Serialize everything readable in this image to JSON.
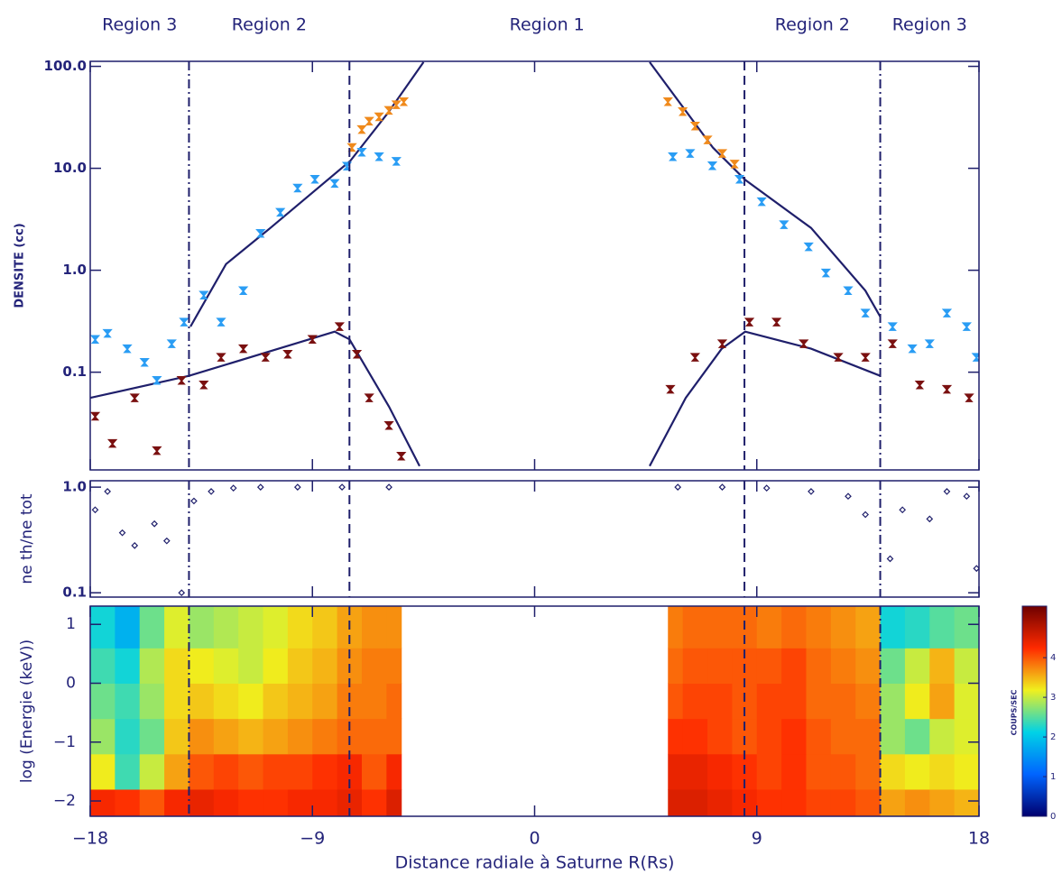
{
  "chart_data": [
    {
      "type": "scatter",
      "ylabel": "DENSITE (cc)",
      "ylog": true,
      "ylim": [
        0.011,
        112
      ],
      "yticks": [
        0.1,
        {
          "value": 1,
          "label": "1.0"
        },
        {
          "value": 10,
          "label": "10.0"
        },
        {
          "value": 100,
          "label": "100.0"
        }
      ],
      "regions": [
        "Region 3",
        "Region 2",
        "Region 1",
        "Region 2",
        "Region 3"
      ],
      "boundaries": [
        {
          "x": -14,
          "style": "dashdot"
        },
        {
          "x": -7.5,
          "style": "dashed"
        },
        {
          "x": 8.5,
          "style": "dashed"
        },
        {
          "x": 14,
          "style": "dashdot"
        }
      ],
      "series": [
        {
          "color": "#1f1f6b",
          "mark": "line",
          "x": [
            -13.94,
            -12.5,
            -10.7,
            -7.47,
            -5.94,
            -4.5,
            null,
            -18,
            -14,
            -8.1,
            -7.5,
            -5.9,
            -4.66,
            null,
            4.66,
            7.22,
            8.53,
            11.2,
            13.4,
            14,
            null,
            4.66,
            6.12,
            7.58,
            8.53,
            11.2,
            14
          ],
          "values": [
            0.28,
            1.15,
            2.6,
            11.8,
            35,
            110,
            null,
            0.056,
            0.092,
            0.25,
            0.21,
            0.046,
            0.012,
            null,
            110,
            16,
            7.7,
            2.6,
            0.63,
            0.35,
            null,
            0.012,
            0.056,
            0.17,
            0.25,
            0.17,
            0.092
          ]
        },
        {
          "color": "#2a9df4",
          "mark": "point",
          "x": [
            -17.8,
            -17.3,
            -16.5,
            -15.8,
            -15.3,
            -14.7,
            -14.2,
            -13.4,
            -12.7,
            -11.8,
            -11.1,
            -10.3,
            -9.6,
            -8.9,
            -8.1,
            -7.6,
            -7.0,
            -6.3,
            -5.6,
            5.6,
            6.3,
            7.2,
            8.3,
            9.2,
            10.1,
            11.1,
            11.8,
            12.7,
            13.4,
            14.5,
            15.3,
            16.0,
            16.7,
            17.5,
            17.9
          ],
          "values": [
            0.21,
            0.24,
            0.17,
            0.125,
            0.083,
            0.19,
            0.31,
            0.57,
            0.31,
            0.63,
            2.3,
            3.7,
            6.4,
            7.8,
            7.1,
            10.5,
            14.4,
            13,
            11.7,
            13,
            14,
            10.6,
            7.8,
            4.7,
            2.8,
            1.7,
            0.94,
            0.63,
            0.38,
            0.28,
            0.17,
            0.19,
            0.38,
            0.28,
            0.14
          ]
        },
        {
          "color": "#f08a1c",
          "mark": "point",
          "x": [
            -7.4,
            -7.0,
            -6.7,
            -6.3,
            -5.9,
            -5.6,
            -5.3,
            5.4,
            6.0,
            6.5,
            7.0,
            7.6,
            8.1
          ],
          "values": [
            16,
            24,
            29,
            32,
            37,
            42,
            45,
            45,
            36,
            26,
            19,
            14,
            11
          ]
        },
        {
          "color": "#7a1010",
          "mark": "point",
          "x": [
            -17.8,
            -17.1,
            -16.2,
            -15.3,
            -14.3,
            -13.4,
            -12.7,
            -11.8,
            -10.9,
            -10.0,
            -9.0,
            -7.9,
            -7.2,
            -6.7,
            -5.9,
            -5.4,
            5.5,
            6.5,
            7.6,
            8.7,
            9.8,
            10.9,
            12.3,
            13.4,
            14.5,
            15.6,
            16.7,
            17.6
          ],
          "values": [
            0.037,
            0.02,
            0.056,
            0.017,
            0.083,
            0.075,
            0.14,
            0.17,
            0.14,
            0.15,
            0.21,
            0.28,
            0.15,
            0.056,
            0.03,
            0.015,
            0.068,
            0.14,
            0.19,
            0.31,
            0.31,
            0.19,
            0.14,
            0.14,
            0.19,
            0.075,
            0.068,
            0.056
          ]
        }
      ]
    },
    {
      "type": "scatter",
      "ylabel": "ne th/ne tot",
      "ylog": true,
      "ylim": [
        0.091,
        1.15
      ],
      "yticks": [
        0.1,
        {
          "value": 1,
          "label": "1.0"
        }
      ],
      "series": [
        {
          "color": "#1f1f6b",
          "mark": "diamond",
          "x": [
            -17.8,
            -17.3,
            -16.7,
            -16.2,
            -15.4,
            -14.9,
            -14.3,
            -13.8,
            -13.1,
            -12.2,
            -11.1,
            -9.6,
            -7.8,
            -5.9,
            5.8,
            7.6,
            9.4,
            11.2,
            12.7,
            13.4,
            14.4,
            14.9,
            16.0,
            16.7,
            17.5,
            17.9
          ],
          "values": [
            0.61,
            0.91,
            0.37,
            0.28,
            0.45,
            0.31,
            0.1,
            0.74,
            0.91,
            0.98,
            1.0,
            1.0,
            1.0,
            1.0,
            1.0,
            1.0,
            0.98,
            0.91,
            0.82,
            0.55,
            0.21,
            0.61,
            0.5,
            0.91,
            0.82,
            0.17
          ]
        }
      ]
    },
    {
      "type": "heatmap",
      "ylabel": "log (Energie (keV))",
      "xlabel": "Distance radiale à Saturne R(Rs)",
      "xlim": [
        -18,
        18
      ],
      "xticks": [
        {
          "value": -18,
          "label": "−18"
        },
        {
          "value": -9,
          "label": "−9"
        },
        0,
        9,
        18
      ],
      "ylim": [
        -2.26,
        1.31
      ],
      "yticks": [
        {
          "value": -2,
          "label": "−2"
        },
        {
          "value": -1,
          "label": "−1"
        },
        0,
        1
      ],
      "x_edges": [
        -18,
        -17,
        -16,
        -15,
        -14,
        -13,
        -12,
        -11,
        -10,
        -9,
        -8,
        -7,
        -6,
        -5.4,
        5.4,
        6,
        7,
        8,
        9,
        10,
        11,
        12,
        13,
        14,
        15,
        16,
        17,
        18
      ],
      "y_edges": [
        -2.26,
        -1.8,
        -1.2,
        -0.6,
        0,
        0.6,
        1.31
      ],
      "z": [
        [
          4.3,
          4.2,
          4.0,
          4.3,
          4.4,
          4.3,
          4.2,
          4.2,
          4.3,
          4.3,
          4.4,
          4.2,
          4.5,
          null,
          4.5,
          4.5,
          4.4,
          4.3,
          4.2,
          4.2,
          4.1,
          4.1,
          4.0,
          3.6,
          3.7,
          3.6,
          3.5
        ],
        [
          3.2,
          2.4,
          3.0,
          3.6,
          4.0,
          4.1,
          4.0,
          4.1,
          4.1,
          4.2,
          4.3,
          4.0,
          4.3,
          null,
          4.4,
          4.4,
          4.3,
          4.2,
          4.1,
          4.2,
          4.0,
          4.0,
          3.9,
          3.3,
          3.2,
          3.3,
          3.2
        ],
        [
          2.8,
          2.3,
          2.6,
          3.4,
          3.7,
          3.6,
          3.5,
          3.6,
          3.7,
          3.8,
          3.9,
          3.9,
          3.9,
          null,
          4.2,
          4.2,
          4.1,
          4.0,
          4.1,
          4.2,
          4.0,
          3.9,
          3.9,
          2.8,
          2.6,
          3.0,
          3.1
        ],
        [
          2.6,
          2.4,
          2.8,
          3.3,
          3.4,
          3.3,
          3.2,
          3.4,
          3.5,
          3.6,
          3.8,
          3.8,
          3.9,
          null,
          4.0,
          4.1,
          4.1,
          4.0,
          4.1,
          4.1,
          3.9,
          3.9,
          3.8,
          2.8,
          3.2,
          3.6,
          3.1
        ],
        [
          2.4,
          2.2,
          2.9,
          3.3,
          3.2,
          3.1,
          3.0,
          3.2,
          3.4,
          3.5,
          3.7,
          3.8,
          3.8,
          null,
          3.9,
          4.0,
          4.0,
          4.0,
          4.0,
          4.1,
          3.9,
          3.8,
          3.7,
          2.6,
          3.0,
          3.5,
          3.0
        ],
        [
          2.2,
          1.8,
          2.6,
          3.1,
          2.8,
          2.9,
          3.0,
          3.1,
          3.3,
          3.4,
          3.6,
          3.7,
          3.7,
          null,
          3.8,
          3.9,
          3.9,
          3.9,
          3.8,
          3.9,
          3.8,
          3.7,
          3.6,
          2.2,
          2.3,
          2.5,
          2.6
        ]
      ],
      "zlim": [
        0,
        5.3
      ],
      "colorscale": [
        "#00006e",
        "#0064ff",
        "#00d2e6",
        "#f0f01e",
        "#ff2a00",
        "#6e0000"
      ],
      "colorbar_ticks": [
        0,
        1,
        2,
        3,
        4
      ],
      "colorbar_label": "COUPS/SEC"
    }
  ]
}
